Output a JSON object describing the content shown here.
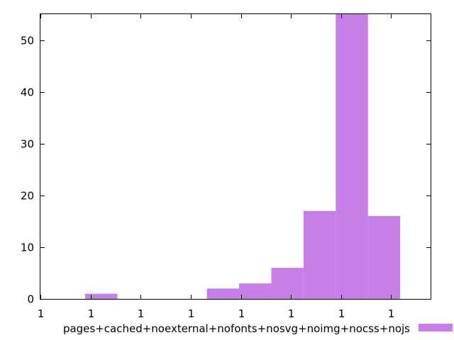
{
  "chart_data": {
    "type": "bar",
    "x_tick_labels": [
      "1",
      "1",
      "1",
      "1",
      "1",
      "1",
      "1",
      "1"
    ],
    "y_ticks": [
      0,
      10,
      20,
      30,
      40,
      50
    ],
    "ylim": [
      0,
      55
    ],
    "grid": false,
    "legend_position": "bottom",
    "series": [
      {
        "name": "pages+cached+noexternal+nofonts+nosvg+noimg+nocss+nojs",
        "color": "#c67ee8",
        "x": [
          0.85,
          2.55,
          3.0,
          3.45,
          3.9,
          4.35,
          4.8
        ],
        "values": [
          1,
          2,
          3,
          6,
          17,
          55,
          16
        ]
      }
    ],
    "xlim": [
      0,
      5.45
    ]
  }
}
